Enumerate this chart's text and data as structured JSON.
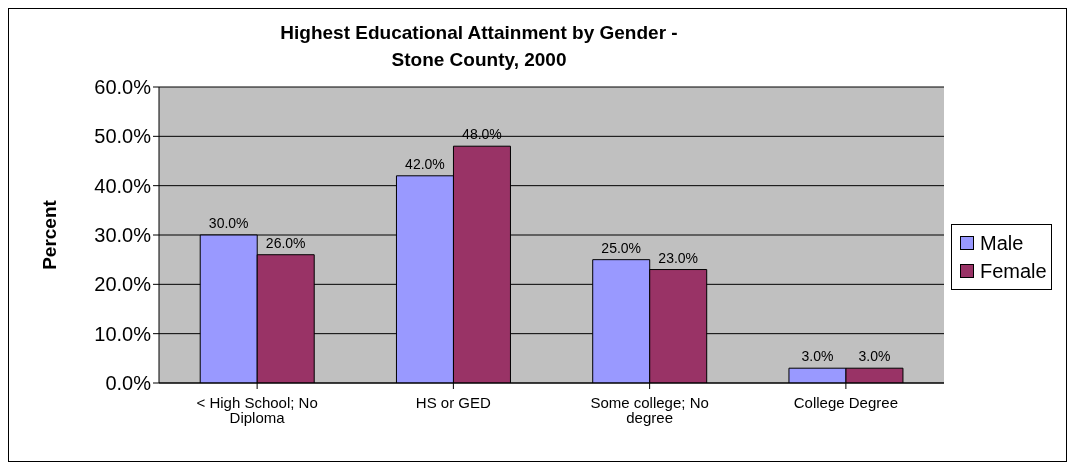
{
  "chart_data": {
    "type": "bar",
    "title": "Highest Educational Attainment by Gender -\nStone County, 2000",
    "ylabel": "Percent",
    "categories": [
      "< High School; No Diploma",
      "HS or GED",
      "Some college; No degree",
      "College Degree"
    ],
    "series": [
      {
        "name": "Male",
        "color": "#9999ff",
        "values": [
          30,
          42,
          25,
          3
        ],
        "value_labels": [
          "30.0%",
          "42.0%",
          "25.0%",
          "3.0%"
        ]
      },
      {
        "name": "Female",
        "color": "#993366",
        "values": [
          26,
          48,
          23,
          3
        ],
        "value_labels": [
          "26.0%",
          "48.0%",
          "23.0%",
          "3.0%"
        ]
      }
    ],
    "ylim": [
      0,
      60
    ],
    "yticks": [
      {
        "value": 0,
        "label": "0.0%"
      },
      {
        "value": 10,
        "label": "10.0%"
      },
      {
        "value": 20,
        "label": "20.0%"
      },
      {
        "value": 30,
        "label": "30.0%"
      },
      {
        "value": 40,
        "label": "40.0%"
      },
      {
        "value": 50,
        "label": "50.0%"
      },
      {
        "value": 60,
        "label": "60.0%"
      }
    ],
    "grid": "y",
    "legend": "right"
  }
}
